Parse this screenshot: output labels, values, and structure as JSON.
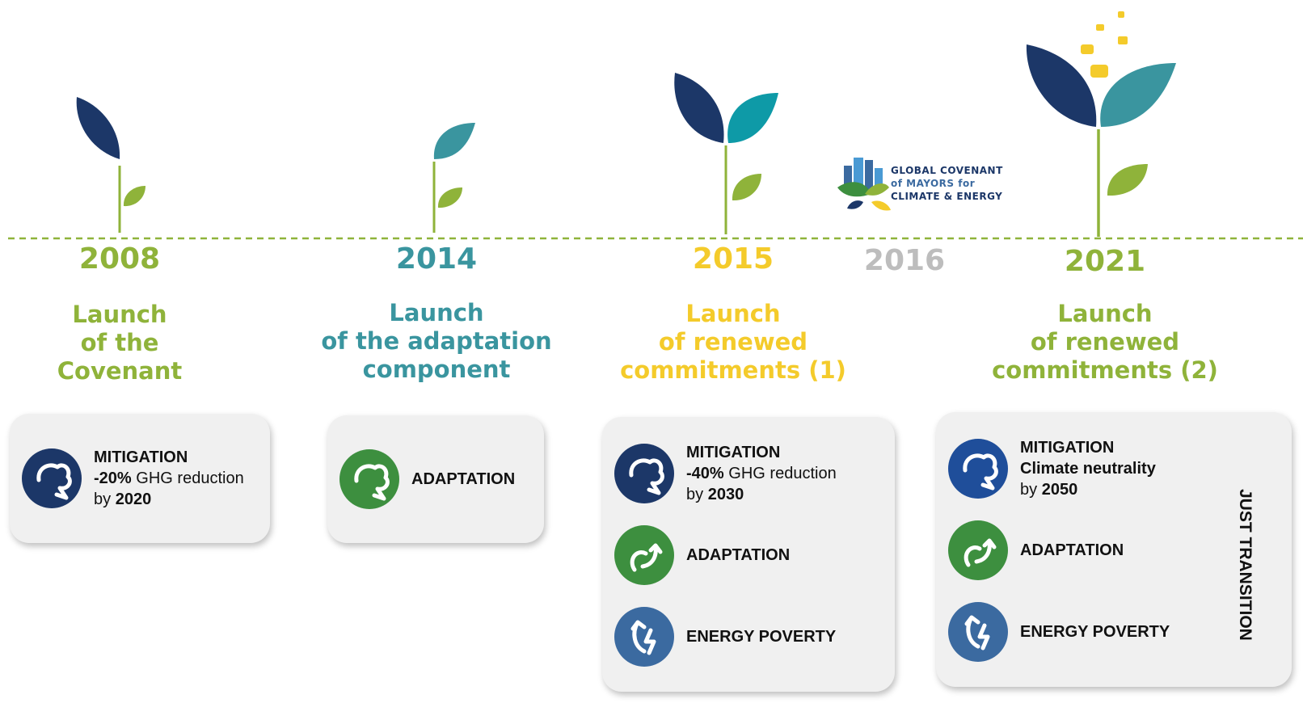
{
  "milestones": [
    {
      "year": "2008",
      "year_color": "#8fb33a",
      "title": [
        "Launch",
        "of the",
        "Covenant"
      ],
      "items": [
        {
          "label": "MITIGATION",
          "icon_color": "#1c3768",
          "lines": [
            [
              {
                "text": "-20%",
                "bold": true
              },
              {
                "text": "GHG reduction",
                "bold": false
              }
            ],
            [
              {
                "text": "by",
                "bold": false
              },
              {
                "text": "2020",
                "bold": true
              }
            ]
          ]
        }
      ]
    },
    {
      "year": "2014",
      "year_color": "#3a959f",
      "title": [
        "Launch",
        "of the adaptation",
        "component"
      ],
      "items": [
        {
          "label": "ADAPTATION",
          "icon_color": "#3d8f3f",
          "lines": []
        }
      ]
    },
    {
      "year": "2015",
      "year_color": "#f4cb2b",
      "title": [
        "Launch",
        "of renewed",
        "commitments (1)"
      ],
      "items": [
        {
          "label": "MITIGATION",
          "icon_color": "#1c3768",
          "lines": [
            [
              {
                "text": "-40%",
                "bold": true
              },
              {
                "text": "GHG reduction",
                "bold": false
              }
            ],
            [
              {
                "text": "by",
                "bold": false
              },
              {
                "text": "2030",
                "bold": true
              }
            ]
          ]
        },
        {
          "label": "ADAPTATION",
          "icon_color": "#3d8f3f",
          "lines": []
        },
        {
          "label": "ENERGY POVERTY",
          "icon_color": "#3b6aa0",
          "lines": []
        }
      ]
    },
    {
      "year": "2021",
      "year_color": "#8fb33a",
      "title": [
        "Launch",
        "of renewed",
        "commitments (2)"
      ],
      "items": [
        {
          "label": "MITIGATION",
          "icon_color": "#1f4e9a",
          "lines": [
            [
              {
                "text": "Climate neutrality",
                "bold": true
              }
            ],
            [
              {
                "text": "by",
                "bold": false
              },
              {
                "text": "2050",
                "bold": true
              }
            ]
          ]
        },
        {
          "label": "ADAPTATION",
          "icon_color": "#3d8f3f",
          "lines": []
        },
        {
          "label": "ENERGY POVERTY",
          "icon_color": "#3b6aa0",
          "lines": []
        }
      ]
    }
  ],
  "year_2016": "2016",
  "logo": {
    "lines": [
      "GLOBAL COVENANT",
      "of MAYORS for",
      "CLIMATE & ENERGY"
    ]
  },
  "side_label": "JUST TRANSITION"
}
